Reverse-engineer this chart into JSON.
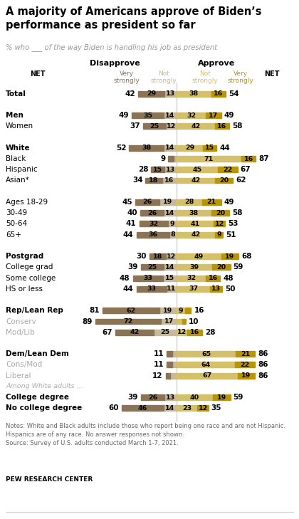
{
  "title": "A majority of Americans approve of Biden’s\nperformance as president so far",
  "subtitle": "% who ___ of the way Biden is handling his job as president",
  "col_header_disapprove": "Disapprove",
  "col_header_approve": "Approve",
  "sub_headers": [
    "Very\nstrongly",
    "Not\nstrongly",
    "Not\nstrongly",
    "Very\nstrongly"
  ],
  "rows": [
    {
      "label": "Total",
      "bold": true,
      "gray": false,
      "spacer": false,
      "among_white": false,
      "dis_vs": 29,
      "dis_ns": 13,
      "app_ns": 38,
      "app_vs": 16,
      "net_dis": 42,
      "net_app": 54
    },
    {
      "label": "",
      "bold": false,
      "gray": false,
      "spacer": true,
      "among_white": false,
      "dis_vs": 0,
      "dis_ns": 0,
      "app_ns": 0,
      "app_vs": 0,
      "net_dis": null,
      "net_app": null
    },
    {
      "label": "Men",
      "bold": true,
      "gray": false,
      "spacer": false,
      "among_white": false,
      "dis_vs": 35,
      "dis_ns": 14,
      "app_ns": 32,
      "app_vs": 17,
      "net_dis": 49,
      "net_app": 49
    },
    {
      "label": "Women",
      "bold": false,
      "gray": false,
      "spacer": false,
      "among_white": false,
      "dis_vs": 25,
      "dis_ns": 12,
      "app_ns": 42,
      "app_vs": 16,
      "net_dis": 37,
      "net_app": 58
    },
    {
      "label": "",
      "bold": false,
      "gray": false,
      "spacer": true,
      "among_white": false,
      "dis_vs": 0,
      "dis_ns": 0,
      "app_ns": 0,
      "app_vs": 0,
      "net_dis": null,
      "net_app": null
    },
    {
      "label": "White",
      "bold": true,
      "gray": false,
      "spacer": false,
      "among_white": false,
      "dis_vs": 38,
      "dis_ns": 14,
      "app_ns": 29,
      "app_vs": 15,
      "net_dis": 52,
      "net_app": 44
    },
    {
      "label": "Black",
      "bold": false,
      "gray": false,
      "spacer": false,
      "among_white": false,
      "dis_vs": 6,
      "dis_ns": 3,
      "app_ns": 71,
      "app_vs": 16,
      "net_dis": 9,
      "net_app": 87
    },
    {
      "label": "Hispanic",
      "bold": false,
      "gray": false,
      "spacer": false,
      "among_white": false,
      "dis_vs": 15,
      "dis_ns": 13,
      "app_ns": 45,
      "app_vs": 22,
      "net_dis": 28,
      "net_app": 67
    },
    {
      "label": "Asian*",
      "bold": false,
      "gray": false,
      "spacer": false,
      "among_white": false,
      "dis_vs": 18,
      "dis_ns": 16,
      "app_ns": 42,
      "app_vs": 20,
      "net_dis": 34,
      "net_app": 62
    },
    {
      "label": "",
      "bold": false,
      "gray": false,
      "spacer": true,
      "among_white": false,
      "dis_vs": 0,
      "dis_ns": 0,
      "app_ns": 0,
      "app_vs": 0,
      "net_dis": null,
      "net_app": null
    },
    {
      "label": "Ages 18-29",
      "bold": false,
      "gray": false,
      "spacer": false,
      "among_white": false,
      "dis_vs": 26,
      "dis_ns": 19,
      "app_ns": 28,
      "app_vs": 21,
      "net_dis": 45,
      "net_app": 49
    },
    {
      "label": "30-49",
      "bold": false,
      "gray": false,
      "spacer": false,
      "among_white": false,
      "dis_vs": 26,
      "dis_ns": 14,
      "app_ns": 38,
      "app_vs": 20,
      "net_dis": 40,
      "net_app": 58
    },
    {
      "label": "50-64",
      "bold": false,
      "gray": false,
      "spacer": false,
      "among_white": false,
      "dis_vs": 32,
      "dis_ns": 9,
      "app_ns": 41,
      "app_vs": 12,
      "net_dis": 41,
      "net_app": 53
    },
    {
      "label": "65+",
      "bold": false,
      "gray": false,
      "spacer": false,
      "among_white": false,
      "dis_vs": 36,
      "dis_ns": 8,
      "app_ns": 42,
      "app_vs": 9,
      "net_dis": 44,
      "net_app": 51
    },
    {
      "label": "",
      "bold": false,
      "gray": false,
      "spacer": true,
      "among_white": false,
      "dis_vs": 0,
      "dis_ns": 0,
      "app_ns": 0,
      "app_vs": 0,
      "net_dis": null,
      "net_app": null
    },
    {
      "label": "Postgrad",
      "bold": true,
      "gray": false,
      "spacer": false,
      "among_white": false,
      "dis_vs": 18,
      "dis_ns": 12,
      "app_ns": 49,
      "app_vs": 19,
      "net_dis": 30,
      "net_app": 68
    },
    {
      "label": "College grad",
      "bold": false,
      "gray": false,
      "spacer": false,
      "among_white": false,
      "dis_vs": 25,
      "dis_ns": 14,
      "app_ns": 39,
      "app_vs": 20,
      "net_dis": 39,
      "net_app": 59
    },
    {
      "label": "Some college",
      "bold": false,
      "gray": false,
      "spacer": false,
      "among_white": false,
      "dis_vs": 33,
      "dis_ns": 15,
      "app_ns": 32,
      "app_vs": 16,
      "net_dis": 48,
      "net_app": 48
    },
    {
      "label": "HS or less",
      "bold": false,
      "gray": false,
      "spacer": false,
      "among_white": false,
      "dis_vs": 33,
      "dis_ns": 11,
      "app_ns": 37,
      "app_vs": 13,
      "net_dis": 44,
      "net_app": 50
    },
    {
      "label": "",
      "bold": false,
      "gray": false,
      "spacer": true,
      "among_white": false,
      "dis_vs": 0,
      "dis_ns": 0,
      "app_ns": 0,
      "app_vs": 0,
      "net_dis": null,
      "net_app": null
    },
    {
      "label": "Rep/Lean Rep",
      "bold": true,
      "gray": false,
      "spacer": false,
      "among_white": false,
      "dis_vs": 62,
      "dis_ns": 19,
      "app_ns": 9,
      "app_vs": 7,
      "net_dis": 81,
      "net_app": 16
    },
    {
      "label": "Conserv",
      "bold": false,
      "gray": true,
      "spacer": false,
      "among_white": false,
      "dis_vs": 72,
      "dis_ns": 17,
      "app_ns": 6,
      "app_vs": 4,
      "net_dis": 89,
      "net_app": 10
    },
    {
      "label": "Mod/Lib",
      "bold": false,
      "gray": true,
      "spacer": false,
      "among_white": false,
      "dis_vs": 42,
      "dis_ns": 25,
      "app_ns": 12,
      "app_vs": 16,
      "net_dis": 67,
      "net_app": 28
    },
    {
      "label": "",
      "bold": false,
      "gray": false,
      "spacer": true,
      "among_white": false,
      "dis_vs": 0,
      "dis_ns": 0,
      "app_ns": 0,
      "app_vs": 0,
      "net_dis": null,
      "net_app": null
    },
    {
      "label": "Dem/Lean Dem",
      "bold": true,
      "gray": false,
      "spacer": false,
      "among_white": false,
      "dis_vs": 6,
      "dis_ns": 5,
      "app_ns": 65,
      "app_vs": 21,
      "net_dis": 11,
      "net_app": 86
    },
    {
      "label": "Cons/Mod",
      "bold": false,
      "gray": true,
      "spacer": false,
      "among_white": false,
      "dis_vs": 6,
      "dis_ns": 5,
      "app_ns": 64,
      "app_vs": 22,
      "net_dis": 11,
      "net_app": 86
    },
    {
      "label": "Liberal",
      "bold": false,
      "gray": true,
      "spacer": false,
      "among_white": false,
      "dis_vs": 5,
      "dis_ns": 7,
      "app_ns": 67,
      "app_vs": 19,
      "net_dis": 12,
      "net_app": 86
    },
    {
      "label": "Among White adults …",
      "bold": false,
      "gray": false,
      "spacer": false,
      "among_white": true,
      "dis_vs": 0,
      "dis_ns": 0,
      "app_ns": 0,
      "app_vs": 0,
      "net_dis": null,
      "net_app": null
    },
    {
      "label": "College degree",
      "bold": true,
      "gray": false,
      "spacer": false,
      "among_white": false,
      "dis_vs": 26,
      "dis_ns": 13,
      "app_ns": 40,
      "app_vs": 19,
      "net_dis": 39,
      "net_app": 59
    },
    {
      "label": "No college degree",
      "bold": true,
      "gray": false,
      "spacer": false,
      "among_white": false,
      "dis_vs": 46,
      "dis_ns": 14,
      "app_ns": 23,
      "app_vs": 12,
      "net_dis": 60,
      "net_app": 35
    }
  ],
  "color_dis_vs": "#8b7355",
  "color_dis_ns": "#c8b99a",
  "color_app_ns": "#d4c06a",
  "color_app_vs": "#b8940a",
  "notes": "Notes: White and Black adults include those who report being one race and are not Hispanic.\nHispanics are of any race. No answer responses not shown.\nSource: Survey of U.S. adults conducted March 1-7, 2021.",
  "source_bold": "PEW RESEARCH CENTER"
}
